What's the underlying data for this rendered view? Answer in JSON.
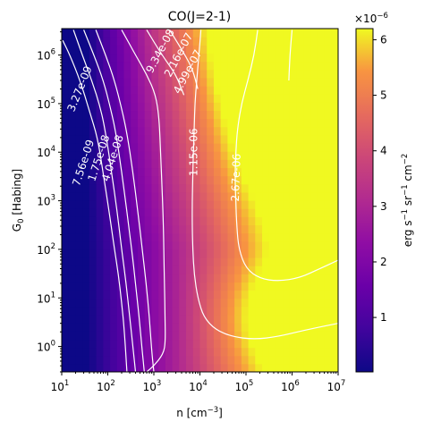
{
  "chart_data": {
    "type": "heatmap",
    "title": "CO(J=2-1)",
    "xlabel_base": "n [cm",
    "xlabel_sup": "−3",
    "xlabel_end": "]",
    "ylabel_base": "G",
    "ylabel_sub": "0",
    "ylabel_end": " [Habing]",
    "x_scale": "log",
    "y_scale": "log",
    "xlim": [
      10,
      10000000
    ],
    "ylim": [
      0.3,
      3500000
    ],
    "x_ticks": [
      {
        "value": 10,
        "base": "10",
        "exp": "1"
      },
      {
        "value": 100,
        "base": "10",
        "exp": "2"
      },
      {
        "value": 1000,
        "base": "10",
        "exp": "3"
      },
      {
        "value": 10000,
        "base": "10",
        "exp": "4"
      },
      {
        "value": 100000,
        "base": "10",
        "exp": "5"
      },
      {
        "value": 1000000,
        "base": "10",
        "exp": "6"
      },
      {
        "value": 10000000,
        "base": "10",
        "exp": "7"
      }
    ],
    "y_ticks": [
      {
        "value": 1,
        "base": "10",
        "exp": "0"
      },
      {
        "value": 10,
        "base": "10",
        "exp": "1"
      },
      {
        "value": 100,
        "base": "10",
        "exp": "2"
      },
      {
        "value": 1000,
        "base": "10",
        "exp": "3"
      },
      {
        "value": 10000,
        "base": "10",
        "exp": "4"
      },
      {
        "value": 100000,
        "base": "10",
        "exp": "5"
      },
      {
        "value": 1000000,
        "base": "10",
        "exp": "6"
      }
    ],
    "colorbar": {
      "colormap": "plasma",
      "min": 2e-08,
      "max": 6.2e-06,
      "ticks": [
        "1",
        "2",
        "3",
        "4",
        "5",
        "6"
      ],
      "tick_values": [
        1,
        2,
        3,
        4,
        5,
        6
      ],
      "multiplier_base": "×10",
      "multiplier_exp": "−6",
      "label_erg": "erg s",
      "label_sup1": "−1",
      "label_sr": " sr",
      "label_sup2": "−1",
      "label_cm": " cm",
      "label_sup3": "−2"
    },
    "contours": [
      {
        "level": "3.27e-09",
        "points": [
          [
            10.5,
            2000000
          ],
          [
            15,
            1000000
          ],
          [
            25,
            300000
          ],
          [
            40,
            70000
          ],
          [
            60,
            20000
          ],
          [
            80,
            3500
          ],
          [
            110,
            500
          ],
          [
            140,
            100
          ],
          [
            170,
            30
          ],
          [
            200,
            8
          ],
          [
            230,
            2
          ],
          [
            260,
            0.3
          ]
        ]
      },
      {
        "level": "7.56e-09",
        "points": [
          [
            18,
            3300000
          ],
          [
            28,
            1000000
          ],
          [
            45,
            300000
          ],
          [
            70,
            80000
          ],
          [
            90,
            25000
          ],
          [
            120,
            4000
          ],
          [
            160,
            600
          ],
          [
            200,
            100
          ],
          [
            250,
            20
          ],
          [
            300,
            4
          ],
          [
            360,
            0.8
          ],
          [
            400,
            0.3
          ]
        ]
      },
      {
        "level": "1.75e-08",
        "points": [
          [
            30,
            3300000
          ],
          [
            50,
            1000000
          ],
          [
            80,
            300000
          ],
          [
            115,
            80000
          ],
          [
            150,
            25000
          ],
          [
            200,
            4000
          ],
          [
            260,
            600
          ],
          [
            330,
            100
          ],
          [
            400,
            20
          ],
          [
            480,
            4
          ],
          [
            560,
            0.8
          ],
          [
            620,
            0.3
          ]
        ]
      },
      {
        "level": "4.04e-08",
        "points": [
          [
            55,
            3300000
          ],
          [
            90,
            1000000
          ],
          [
            140,
            300000
          ],
          [
            200,
            80000
          ],
          [
            260,
            25000
          ],
          [
            350,
            4000
          ],
          [
            450,
            600
          ],
          [
            560,
            100
          ],
          [
            680,
            20
          ],
          [
            800,
            4
          ],
          [
            900,
            0.8
          ],
          [
            1000,
            0.3
          ]
        ]
      },
      {
        "level": "9.34e-08",
        "points": [
          [
            200,
            3300000
          ],
          [
            400,
            1000000
          ],
          [
            700,
            400000
          ],
          [
            1100,
            150000
          ],
          [
            1300,
            50000
          ],
          [
            1400,
            10000
          ],
          [
            1500,
            2000
          ],
          [
            1600,
            400
          ],
          [
            1650,
            80
          ],
          [
            1700,
            20
          ],
          [
            1750,
            4
          ],
          [
            1780,
            1.2
          ],
          [
            1600,
            0.7
          ],
          [
            1000,
            0.4
          ],
          [
            700,
            0.3
          ]
        ]
      },
      {
        "level": "2.16e-07",
        "points": [
          [
            700,
            3300000
          ],
          [
            1500,
            1000000
          ],
          [
            3000,
            400000
          ],
          [
            4500,
            150000
          ]
        ]
      },
      {
        "level": "4.99e-07",
        "points": [
          [
            2200,
            3300000
          ],
          [
            4500,
            1100000
          ],
          [
            7000,
            500000
          ],
          [
            9000,
            200000
          ]
        ]
      },
      {
        "level": "1.15e-06",
        "points": [
          [
            10500,
            3300000
          ],
          [
            9500,
            1000000
          ],
          [
            8500,
            300000
          ],
          [
            7800,
            100000
          ],
          [
            7500,
            30000
          ],
          [
            7200,
            10000
          ],
          [
            7000,
            3000
          ],
          [
            6800,
            1000
          ],
          [
            6800,
            300
          ],
          [
            7000,
            100
          ],
          [
            7500,
            30
          ],
          [
            9000,
            10
          ],
          [
            12000,
            4
          ],
          [
            22000,
            2.2
          ],
          [
            50000,
            1.6
          ],
          [
            150000,
            1.4
          ],
          [
            500000,
            1.6
          ],
          [
            2000000,
            2.2
          ],
          [
            10000000,
            3.0
          ]
        ]
      },
      {
        "level": "2.67e-06",
        "points": [
          [
            180000,
            3300000
          ],
          [
            150000,
            1000000
          ],
          [
            110000,
            300000
          ],
          [
            80000,
            100000
          ],
          [
            65000,
            30000
          ],
          [
            60000,
            10000
          ],
          [
            58000,
            3000
          ],
          [
            60000,
            1000
          ],
          [
            63000,
            300
          ],
          [
            70000,
            100
          ],
          [
            100000,
            40
          ],
          [
            200000,
            25
          ],
          [
            500000,
            22
          ],
          [
            1500000,
            26
          ],
          [
            4000000,
            40
          ],
          [
            10000000,
            60
          ]
        ]
      },
      {
        "level": "",
        "points": [
          [
            1000000,
            3300000
          ],
          [
            900000,
            1000000
          ],
          [
            850000,
            300000
          ]
        ]
      }
    ],
    "contour_labels": [
      {
        "text": "3.27e-09",
        "x": 25,
        "y": 200000,
        "angle": -68
      },
      {
        "text": "7.56e-09",
        "x": 30,
        "y": 6000,
        "angle": -72
      },
      {
        "text": "1.75e-08",
        "x": 65,
        "y": 7500,
        "angle": -72
      },
      {
        "text": "4.04e-08",
        "x": 130,
        "y": 7500,
        "angle": -72
      },
      {
        "text": "9.34e-08",
        "x": 1400,
        "y": 1200000,
        "angle": -62
      },
      {
        "text": "2.16e-07",
        "x": 3500,
        "y": 1000000,
        "angle": -62
      },
      {
        "text": "4.99e-07",
        "x": 5500,
        "y": 450000,
        "angle": -62
      },
      {
        "text": "1.15e-06",
        "x": 7500,
        "y": 10000,
        "angle": -90
      },
      {
        "text": "2.67e-06",
        "x": 62000,
        "y": 3000,
        "angle": -88
      }
    ]
  }
}
